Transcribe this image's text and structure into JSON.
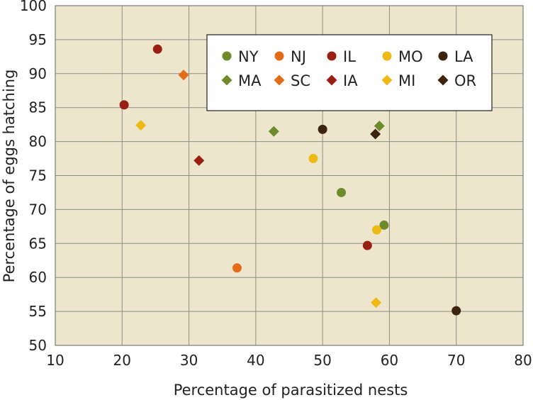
{
  "chart_data": {
    "type": "scatter",
    "xlabel": "Percentage of parasitized nests",
    "ylabel": "Percentage of eggs hatching",
    "xlim": [
      10,
      80
    ],
    "ylim": [
      50,
      100
    ],
    "xticks": [
      10,
      20,
      30,
      40,
      50,
      60,
      70,
      80
    ],
    "yticks": [
      50,
      55,
      60,
      65,
      70,
      75,
      80,
      85,
      90,
      95,
      100
    ],
    "grid": true,
    "background": "#ede6cd",
    "legend_position": "top-right",
    "series": [
      {
        "name": "NY",
        "marker": "circle",
        "color": "#6e8b2c",
        "points": [
          [
            52.8,
            72.5
          ],
          [
            59.2,
            67.7
          ]
        ]
      },
      {
        "name": "NJ",
        "marker": "circle",
        "color": "#e36c16",
        "points": [
          [
            37.2,
            61.4
          ]
        ]
      },
      {
        "name": "IL",
        "marker": "circle",
        "color": "#9a1f12",
        "points": [
          [
            25.3,
            93.6
          ],
          [
            20.3,
            85.4
          ],
          [
            56.7,
            64.7
          ]
        ]
      },
      {
        "name": "MO",
        "marker": "circle",
        "color": "#edb915",
        "points": [
          [
            48.6,
            77.5
          ],
          [
            58.1,
            67.0
          ]
        ]
      },
      {
        "name": "LA",
        "marker": "circle",
        "color": "#3c250f",
        "points": [
          [
            50.0,
            81.8
          ],
          [
            70.0,
            55.1
          ]
        ]
      },
      {
        "name": "MA",
        "marker": "diamond",
        "color": "#6e8b2c",
        "points": [
          [
            42.7,
            81.5
          ],
          [
            58.5,
            82.3
          ]
        ]
      },
      {
        "name": "SC",
        "marker": "diamond",
        "color": "#e36c16",
        "points": [
          [
            29.2,
            89.8
          ]
        ]
      },
      {
        "name": "IA",
        "marker": "diamond",
        "color": "#9a1f12",
        "points": [
          [
            31.5,
            77.2
          ]
        ]
      },
      {
        "name": "MI",
        "marker": "diamond",
        "color": "#edb915",
        "points": [
          [
            22.8,
            82.4
          ],
          [
            58.0,
            56.3
          ]
        ]
      },
      {
        "name": "OR",
        "marker": "diamond",
        "color": "#3c250f",
        "points": [
          [
            57.9,
            81.1
          ]
        ]
      }
    ]
  }
}
